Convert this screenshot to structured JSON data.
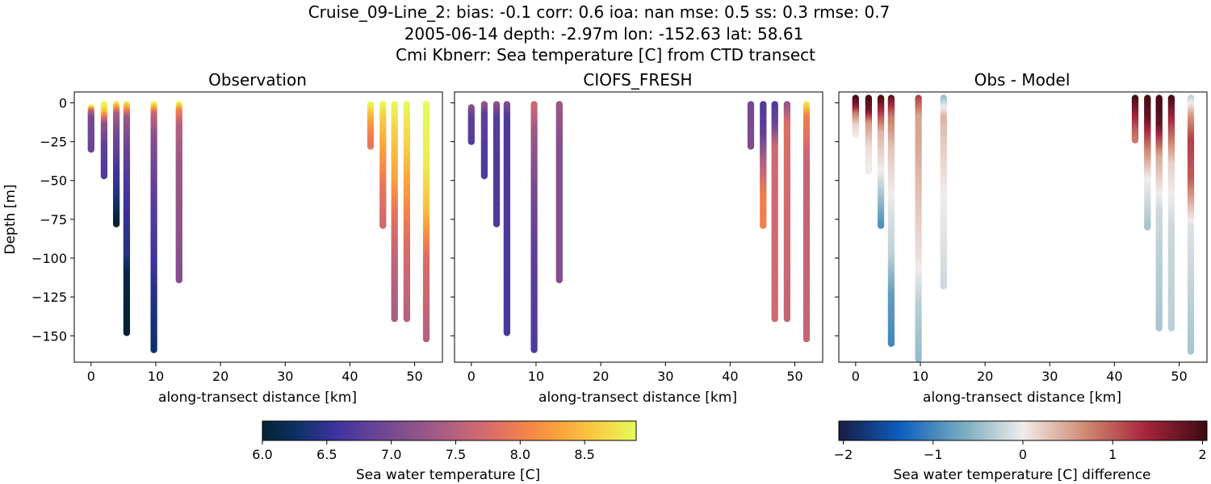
{
  "figure": {
    "title_lines": [
      "Cruise_09-Line_2: bias: -0.1  corr: 0.6  ioa: nan  mse: 0.5  ss: 0.3  rmse: 0.7",
      "2005-06-14 depth: -2.97m lon: -152.63 lat: 58.61",
      "Cmi Kbnerr: Sea temperature [C] from CTD transect"
    ]
  },
  "colors": {
    "thermal": [
      "#032333",
      "#0f3169",
      "#3f339f",
      "#674396",
      "#8a528c",
      "#b05f81",
      "#d56b6c",
      "#f2824c",
      "#fba53c",
      "#f6d045",
      "#e7fa5a"
    ],
    "balance": [
      "#181c43",
      "#0c5ebe",
      "#75aabe",
      "#f1eceb",
      "#d08b73",
      "#a7253c",
      "#3c0912"
    ]
  },
  "chart_data": [
    {
      "type": "scatter",
      "title": "Observation",
      "xlabel": "along-transect distance [km]",
      "ylabel": "Depth [m]",
      "xlim": [
        -2.6,
        54.3
      ],
      "ylim": [
        -167,
        7
      ],
      "xticks": [
        0,
        10,
        20,
        30,
        40,
        50
      ],
      "yticks": [
        0,
        -25,
        -50,
        -75,
        -100,
        -125,
        -150
      ],
      "colormap": "thermal",
      "clim": [
        6.0,
        8.9
      ],
      "casts": [
        {
          "x": 0.0,
          "profile": [
            [
              -3,
              8.9
            ],
            [
              -6,
              7.6
            ],
            [
              -10,
              7.0
            ],
            [
              -18,
              6.95
            ],
            [
              -30,
              6.9
            ]
          ]
        },
        {
          "x": 2.0,
          "profile": [
            [
              -1,
              8.9
            ],
            [
              -6,
              8.6
            ],
            [
              -14,
              7.2
            ],
            [
              -30,
              6.8
            ],
            [
              -47,
              6.7
            ]
          ]
        },
        {
          "x": 3.9,
          "profile": [
            [
              -1,
              8.8
            ],
            [
              -8,
              7.4
            ],
            [
              -20,
              7.0
            ],
            [
              -45,
              6.6
            ],
            [
              -60,
              6.4
            ],
            [
              -78,
              6.0
            ]
          ]
        },
        {
          "x": 5.5,
          "profile": [
            [
              -1,
              8.8
            ],
            [
              -10,
              7.3
            ],
            [
              -30,
              6.9
            ],
            [
              -60,
              6.6
            ],
            [
              -100,
              6.4
            ],
            [
              -110,
              6.1
            ],
            [
              -148,
              6.0
            ]
          ]
        },
        {
          "x": 9.7,
          "profile": [
            [
              -1,
              8.9
            ],
            [
              -8,
              7.6
            ],
            [
              -25,
              7.1
            ],
            [
              -60,
              6.8
            ],
            [
              -100,
              6.6
            ],
            [
              -130,
              6.4
            ],
            [
              -159,
              6.3
            ]
          ]
        },
        {
          "x": 13.6,
          "profile": [
            [
              -1,
              8.9
            ],
            [
              -6,
              8.0
            ],
            [
              -15,
              7.5
            ],
            [
              -40,
              7.3
            ],
            [
              -80,
              7.2
            ],
            [
              -114,
              7.1
            ]
          ]
        },
        {
          "x": 43.2,
          "profile": [
            [
              -1,
              8.9
            ],
            [
              -8,
              8.5
            ],
            [
              -18,
              8.1
            ],
            [
              -28,
              7.9
            ]
          ]
        },
        {
          "x": 45.1,
          "profile": [
            [
              -1,
              8.9
            ],
            [
              -10,
              8.6
            ],
            [
              -30,
              8.3
            ],
            [
              -55,
              7.9
            ],
            [
              -79,
              7.7
            ]
          ]
        },
        {
          "x": 46.9,
          "profile": [
            [
              -1,
              8.9
            ],
            [
              -20,
              8.6
            ],
            [
              -50,
              8.3
            ],
            [
              -70,
              7.9
            ],
            [
              -100,
              7.6
            ],
            [
              -139,
              7.4
            ]
          ]
        },
        {
          "x": 48.8,
          "profile": [
            [
              -1,
              8.9
            ],
            [
              -30,
              8.6
            ],
            [
              -60,
              8.2
            ],
            [
              -90,
              7.8
            ],
            [
              -139,
              7.5
            ]
          ]
        },
        {
          "x": 51.8,
          "profile": [
            [
              -1,
              8.9
            ],
            [
              -40,
              8.8
            ],
            [
              -70,
              8.5
            ],
            [
              -100,
              7.8
            ],
            [
              -152,
              7.5
            ]
          ]
        }
      ]
    },
    {
      "type": "scatter",
      "title": "CIOFS_FRESH",
      "xlabel": "along-transect distance [km]",
      "ylabel": "",
      "xlim": [
        -2.6,
        54.3
      ],
      "ylim": [
        -167,
        7
      ],
      "xticks": [
        0,
        10,
        20,
        30,
        40,
        50
      ],
      "yticks": [
        0,
        -25,
        -50,
        -75,
        -100,
        -125,
        -150
      ],
      "colormap": "thermal",
      "clim": [
        6.0,
        8.9
      ],
      "casts": [
        {
          "x": 0.0,
          "profile": [
            [
              -3,
              7.2
            ],
            [
              -10,
              6.8
            ],
            [
              -25,
              6.75
            ]
          ]
        },
        {
          "x": 2.0,
          "profile": [
            [
              -1,
              7.3
            ],
            [
              -8,
              6.8
            ],
            [
              -47,
              6.7
            ]
          ]
        },
        {
          "x": 3.9,
          "profile": [
            [
              -1,
              7.2
            ],
            [
              -10,
              6.75
            ],
            [
              -78,
              6.7
            ]
          ]
        },
        {
          "x": 5.5,
          "profile": [
            [
              -1,
              7.1
            ],
            [
              -10,
              6.7
            ],
            [
              -148,
              6.65
            ]
          ]
        },
        {
          "x": 9.7,
          "profile": [
            [
              -1,
              7.7
            ],
            [
              -20,
              7.3
            ],
            [
              -60,
              7.0
            ],
            [
              -100,
              6.8
            ],
            [
              -159,
              6.7
            ]
          ]
        },
        {
          "x": 13.6,
          "profile": [
            [
              -1,
              7.3
            ],
            [
              -30,
              7.1
            ],
            [
              -114,
              7.1
            ]
          ]
        },
        {
          "x": 43.2,
          "profile": [
            [
              -1,
              7.0
            ],
            [
              -28,
              7.05
            ]
          ]
        },
        {
          "x": 45.1,
          "profile": [
            [
              -1,
              6.7
            ],
            [
              -20,
              6.8
            ],
            [
              -40,
              7.5
            ],
            [
              -60,
              8.0
            ],
            [
              -79,
              8.0
            ]
          ]
        },
        {
          "x": 46.9,
          "profile": [
            [
              -1,
              6.7
            ],
            [
              -15,
              6.9
            ],
            [
              -30,
              7.7
            ],
            [
              -139,
              7.7
            ]
          ]
        },
        {
          "x": 48.8,
          "profile": [
            [
              -1,
              7.2
            ],
            [
              -15,
              7.8
            ],
            [
              -139,
              7.6
            ]
          ]
        },
        {
          "x": 51.8,
          "profile": [
            [
              -1,
              8.8
            ],
            [
              -10,
              8.0
            ],
            [
              -40,
              7.6
            ],
            [
              -152,
              7.6
            ]
          ]
        }
      ]
    },
    {
      "type": "scatter",
      "title": "Obs - Model",
      "xlabel": "along-transect distance [km]",
      "ylabel": "",
      "xlim": [
        -2.6,
        54.3
      ],
      "ylim": [
        -167,
        7
      ],
      "xticks": [
        0,
        10,
        20,
        30,
        40,
        50
      ],
      "yticks": [
        0,
        -25,
        -50,
        -75,
        -100,
        -125,
        -150
      ],
      "colormap": "balance",
      "clim": [
        -2.05,
        2.05
      ],
      "casts": [
        {
          "x": 0.0,
          "profile": [
            [
              3,
              2.0
            ],
            [
              -3,
              1.6
            ],
            [
              -8,
              0.8
            ],
            [
              -15,
              0.2
            ],
            [
              -20,
              0.05
            ]
          ]
        },
        {
          "x": 2.0,
          "profile": [
            [
              3,
              2.0
            ],
            [
              -6,
              1.7
            ],
            [
              -14,
              0.6
            ],
            [
              -30,
              0.1
            ],
            [
              -44,
              0.0
            ]
          ]
        },
        {
          "x": 3.9,
          "profile": [
            [
              3,
              2.0
            ],
            [
              -8,
              1.2
            ],
            [
              -20,
              0.4
            ],
            [
              -45,
              0.0
            ],
            [
              -60,
              -0.4
            ],
            [
              -79,
              -0.9
            ]
          ]
        },
        {
          "x": 5.5,
          "profile": [
            [
              3,
              1.8
            ],
            [
              -10,
              0.8
            ],
            [
              -30,
              0.3
            ],
            [
              -70,
              -0.1
            ],
            [
              -100,
              -0.3
            ],
            [
              -125,
              -0.8
            ],
            [
              -155,
              -1.0
            ]
          ]
        },
        {
          "x": 9.7,
          "profile": [
            [
              3,
              1.2
            ],
            [
              -10,
              0.5
            ],
            [
              -25,
              0.5
            ],
            [
              -60,
              0.3
            ],
            [
              -100,
              0.1
            ],
            [
              -130,
              -0.3
            ],
            [
              -165,
              -0.5
            ]
          ]
        },
        {
          "x": 13.6,
          "profile": [
            [
              3,
              -0.5
            ],
            [
              -10,
              0.4
            ],
            [
              -20,
              0.3
            ],
            [
              -60,
              0.0
            ],
            [
              -118,
              -0.2
            ]
          ]
        },
        {
          "x": 43.2,
          "profile": [
            [
              3,
              2.0
            ],
            [
              -8,
              1.5
            ],
            [
              -18,
              1.0
            ],
            [
              -24,
              0.8
            ]
          ]
        },
        {
          "x": 45.1,
          "profile": [
            [
              3,
              2.0
            ],
            [
              -10,
              1.8
            ],
            [
              -30,
              0.8
            ],
            [
              -50,
              0.0
            ],
            [
              -80,
              -0.4
            ]
          ]
        },
        {
          "x": 46.9,
          "profile": [
            [
              3,
              2.0
            ],
            [
              -15,
              1.8
            ],
            [
              -35,
              0.5
            ],
            [
              -70,
              -0.2
            ],
            [
              -100,
              -0.3
            ],
            [
              -145,
              -0.4
            ]
          ]
        },
        {
          "x": 48.8,
          "profile": [
            [
              3,
              2.0
            ],
            [
              -20,
              1.0
            ],
            [
              -40,
              0.2
            ],
            [
              -80,
              -0.2
            ],
            [
              -145,
              -0.3
            ]
          ]
        },
        {
          "x": 51.8,
          "profile": [
            [
              3,
              -0.3
            ],
            [
              -10,
              0.6
            ],
            [
              -25,
              1.2
            ],
            [
              -50,
              1.0
            ],
            [
              -80,
              -0.1
            ],
            [
              -130,
              -0.3
            ],
            [
              -160,
              -0.4
            ]
          ]
        }
      ]
    }
  ],
  "colorbars": [
    {
      "label": "Sea water temperature [C]",
      "colormap": "thermal",
      "range": [
        6.0,
        8.9
      ],
      "ticks": [
        6.0,
        6.5,
        7.0,
        7.5,
        8.0,
        8.5
      ],
      "tick_labels": [
        "6.0",
        "6.5",
        "7.0",
        "7.5",
        "8.0",
        "8.5"
      ]
    },
    {
      "label": "Sea water temperature [C] difference",
      "colormap": "balance",
      "range": [
        -2.05,
        2.05
      ],
      "ticks": [
        -2,
        -1,
        0,
        1,
        2
      ],
      "tick_labels": [
        "−2",
        "−1",
        "0",
        "1",
        "2"
      ]
    }
  ]
}
